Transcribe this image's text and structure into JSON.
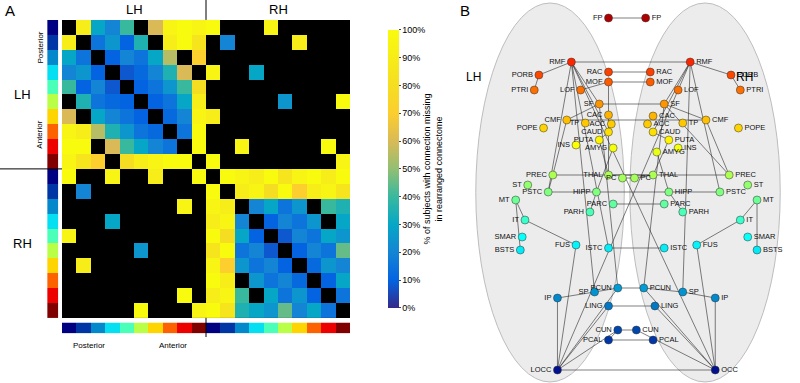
{
  "chart_data": [
    {
      "type": "heatmap",
      "panel_label": "A",
      "column_groups": [
        "LH",
        "RH"
      ],
      "row_groups": [
        "LH",
        "RH"
      ],
      "order_labels": [
        "Posterior",
        "Anterior"
      ],
      "tick_labels": false,
      "cells": [
        [
          null,
          90,
          30,
          20,
          40,
          null,
          60,
          95,
          100,
          95,
          100,
          null,
          null,
          null,
          95,
          null,
          null,
          null,
          null,
          null
        ],
        [
          90,
          null,
          15,
          25,
          10,
          35,
          null,
          90,
          100,
          85,
          null,
          20,
          null,
          null,
          null,
          null,
          90,
          null,
          null,
          null
        ],
        [
          30,
          15,
          null,
          10,
          20,
          15,
          30,
          55,
          null,
          70,
          null,
          null,
          null,
          null,
          null,
          null,
          null,
          null,
          null,
          null
        ],
        [
          20,
          25,
          10,
          null,
          8,
          12,
          20,
          35,
          60,
          null,
          95,
          null,
          null,
          30,
          null,
          null,
          null,
          null,
          null,
          null
        ],
        [
          40,
          10,
          20,
          8,
          null,
          10,
          15,
          25,
          40,
          80,
          null,
          null,
          null,
          null,
          null,
          null,
          null,
          null,
          null,
          null
        ],
        [
          null,
          35,
          15,
          12,
          10,
          null,
          10,
          15,
          30,
          90,
          null,
          null,
          null,
          null,
          null,
          25,
          null,
          null,
          null,
          100
        ],
        [
          60,
          null,
          30,
          20,
          15,
          10,
          null,
          12,
          20,
          95,
          90,
          null,
          null,
          null,
          null,
          null,
          null,
          null,
          null,
          null
        ],
        [
          95,
          90,
          55,
          35,
          25,
          15,
          12,
          null,
          15,
          100,
          null,
          null,
          null,
          null,
          null,
          null,
          null,
          null,
          null,
          null
        ],
        [
          100,
          100,
          null,
          60,
          40,
          30,
          20,
          15,
          null,
          100,
          null,
          null,
          95,
          null,
          null,
          null,
          null,
          null,
          100,
          null
        ],
        [
          95,
          85,
          70,
          null,
          80,
          90,
          95,
          100,
          100,
          null,
          100,
          null,
          null,
          null,
          null,
          null,
          null,
          null,
          null,
          95
        ],
        [
          100,
          null,
          null,
          95,
          null,
          null,
          90,
          null,
          null,
          100,
          null,
          100,
          95,
          90,
          100,
          85,
          95,
          100,
          90,
          100
        ],
        [
          null,
          20,
          null,
          null,
          null,
          null,
          null,
          null,
          null,
          null,
          100,
          null,
          90,
          95,
          80,
          100,
          70,
          90,
          95,
          85
        ],
        [
          null,
          null,
          null,
          null,
          null,
          null,
          null,
          null,
          95,
          null,
          95,
          90,
          null,
          20,
          30,
          15,
          25,
          null,
          40,
          35
        ],
        [
          null,
          null,
          null,
          30,
          null,
          null,
          null,
          null,
          null,
          null,
          90,
          95,
          20,
          null,
          10,
          20,
          15,
          25,
          null,
          30
        ],
        [
          95,
          null,
          null,
          null,
          null,
          null,
          null,
          null,
          null,
          null,
          100,
          80,
          30,
          10,
          null,
          8,
          20,
          15,
          30,
          25
        ],
        [
          null,
          null,
          null,
          null,
          null,
          25,
          null,
          null,
          null,
          null,
          85,
          100,
          15,
          20,
          8,
          null,
          10,
          20,
          15,
          45
        ],
        [
          null,
          90,
          null,
          null,
          null,
          null,
          null,
          null,
          null,
          null,
          95,
          70,
          25,
          15,
          20,
          10,
          null,
          12,
          25,
          20
        ],
        [
          null,
          null,
          null,
          null,
          null,
          null,
          null,
          null,
          null,
          null,
          100,
          90,
          null,
          25,
          15,
          20,
          12,
          null,
          10,
          30
        ],
        [
          null,
          null,
          null,
          null,
          null,
          null,
          null,
          null,
          100,
          null,
          90,
          95,
          40,
          null,
          30,
          15,
          25,
          10,
          null,
          15
        ],
        [
          null,
          null,
          null,
          null,
          null,
          100,
          null,
          null,
          null,
          95,
          100,
          85,
          35,
          30,
          25,
          45,
          20,
          30,
          15,
          null
        ]
      ],
      "colorbar": {
        "title": [
          "% of subjects with connection missing",
          "in rearranged connectome"
        ],
        "range": [
          0,
          100
        ],
        "ticks": [
          {
            "value": 0,
            "label": "0%"
          },
          {
            "value": 10,
            "label": "10%"
          },
          {
            "value": 20,
            "label": "20%"
          },
          {
            "value": 30,
            "label": "30%"
          },
          {
            "value": 40,
            "label": "40%"
          },
          {
            "value": 50,
            "label": "50%"
          },
          {
            "value": 60,
            "label": "60%"
          },
          {
            "value": 70,
            "label": "70%"
          },
          {
            "value": 80,
            "label": "80%"
          },
          {
            "value": 90,
            "label": "90%"
          },
          {
            "value": 100,
            "label": "100%"
          }
        ]
      }
    },
    {
      "type": "network",
      "panel_label": "B",
      "hemisphere_labels": [
        "LH",
        "RH"
      ],
      "tick_labels": false,
      "xlim": [
        -180,
        182
      ],
      "ylim": [
        -183,
        200
      ],
      "nodes": [
        {
          "label": "FP",
          "x": -20,
          "y": 182
        },
        {
          "label": "RMF",
          "x": -60,
          "y": 138
        },
        {
          "label": "RAC",
          "x": -20,
          "y": 128
        },
        {
          "label": "MOF",
          "x": -20,
          "y": 118
        },
        {
          "label": "PORB",
          "x": -95,
          "y": 125
        },
        {
          "label": "PTRI",
          "x": -100,
          "y": 110
        },
        {
          "label": "LOF",
          "x": -50,
          "y": 110
        },
        {
          "label": "SF",
          "x": -30,
          "y": 96
        },
        {
          "label": "CAC",
          "x": -20,
          "y": 85
        },
        {
          "label": "POPE",
          "x": -90,
          "y": 72
        },
        {
          "label": "CMF",
          "x": -65,
          "y": 80
        },
        {
          "label": "TP",
          "x": -45,
          "y": 77
        },
        {
          "label": "ACC",
          "x": -17,
          "y": 76
        },
        {
          "label": "CAUD",
          "x": -20,
          "y": 68
        },
        {
          "label": "PUTA",
          "x": -30,
          "y": 60
        },
        {
          "label": "INS",
          "x": -55,
          "y": 55
        },
        {
          "label": "AMYG",
          "x": -15,
          "y": 52
        },
        {
          "label": "PREC",
          "x": -80,
          "y": 25
        },
        {
          "label": "ST",
          "x": -107,
          "y": 15
        },
        {
          "label": "THAL",
          "x": -20,
          "y": 25
        },
        {
          "label": "PC",
          "x": -5,
          "y": 22
        },
        {
          "label": "PSTC",
          "x": -85,
          "y": 8
        },
        {
          "label": "MT",
          "x": -120,
          "y": 0
        },
        {
          "label": "HIPP",
          "x": -33,
          "y": 8
        },
        {
          "label": "PARC",
          "x": -15,
          "y": -4
        },
        {
          "label": "PARH",
          "x": -40,
          "y": -12
        },
        {
          "label": "IT",
          "x": -110,
          "y": -20
        },
        {
          "label": "SMAR",
          "x": -113,
          "y": -37
        },
        {
          "label": "BSTS",
          "x": -115,
          "y": -50
        },
        {
          "label": "FUS",
          "x": -55,
          "y": -45
        },
        {
          "label": "ISTC",
          "x": -20,
          "y": -48
        },
        {
          "label": "IP",
          "x": -75,
          "y": -98
        },
        {
          "label": "SP",
          "x": -35,
          "y": -92
        },
        {
          "label": "PCUN",
          "x": -10,
          "y": -88
        },
        {
          "label": "LING",
          "x": -20,
          "y": -106
        },
        {
          "label": "CUN",
          "x": -10,
          "y": -130
        },
        {
          "label": "PCAL",
          "x": -20,
          "y": -140
        },
        {
          "label": "LOCC",
          "x": -75,
          "y": -170
        },
        {
          "label": "FP",
          "x": 20,
          "y": 182
        },
        {
          "label": "RMF",
          "x": 68,
          "y": 138
        },
        {
          "label": "RAC",
          "x": 25,
          "y": 128
        },
        {
          "label": "MOF",
          "x": 25,
          "y": 118
        },
        {
          "label": "PORB",
          "x": 112,
          "y": 125
        },
        {
          "label": "PTRI",
          "x": 122,
          "y": 110
        },
        {
          "label": "LOF",
          "x": 55,
          "y": 110
        },
        {
          "label": "SF",
          "x": 40,
          "y": 96
        },
        {
          "label": "CAC",
          "x": 28,
          "y": 84
        },
        {
          "label": "POPE",
          "x": 120,
          "y": 72
        },
        {
          "label": "CMF",
          "x": 85,
          "y": 80
        },
        {
          "label": "TP",
          "x": 60,
          "y": 77
        },
        {
          "label": "ACC",
          "x": 22,
          "y": 76
        },
        {
          "label": "CAUD",
          "x": 28,
          "y": 68
        },
        {
          "label": "PUTA",
          "x": 45,
          "y": 60
        },
        {
          "label": "INS",
          "x": 55,
          "y": 52
        },
        {
          "label": "AMYG",
          "x": 32,
          "y": 48
        },
        {
          "label": "PREC",
          "x": 110,
          "y": 25
        },
        {
          "label": "ST",
          "x": 130,
          "y": 15
        },
        {
          "label": "THAL",
          "x": 28,
          "y": 25
        },
        {
          "label": "PC",
          "x": 8,
          "y": 22
        },
        {
          "label": "PSTC",
          "x": 100,
          "y": 8
        },
        {
          "label": "MT",
          "x": 140,
          "y": 0
        },
        {
          "label": "HIPP",
          "x": 45,
          "y": 8
        },
        {
          "label": "PARC",
          "x": 40,
          "y": -4
        },
        {
          "label": "PARH",
          "x": 60,
          "y": -12
        },
        {
          "label": "IT",
          "x": 122,
          "y": -20
        },
        {
          "label": "SMAR",
          "x": 130,
          "y": -37
        },
        {
          "label": "BSTS",
          "x": 140,
          "y": -50
        },
        {
          "label": "FUS",
          "x": 75,
          "y": -45
        },
        {
          "label": "ISTC",
          "x": 40,
          "y": -48
        },
        {
          "label": "IP",
          "x": 95,
          "y": -98
        },
        {
          "label": "SP",
          "x": 60,
          "y": -92
        },
        {
          "label": "PCUN",
          "x": 18,
          "y": -88
        },
        {
          "label": "LING",
          "x": 30,
          "y": -106
        },
        {
          "label": "CUN",
          "x": 10,
          "y": -130
        },
        {
          "label": "PCAL",
          "x": 28,
          "y": -140
        },
        {
          "label": "OCC",
          "x": 95,
          "y": -170
        }
      ],
      "edges": [
        [
          1,
          4
        ],
        [
          1,
          7
        ],
        [
          1,
          39
        ],
        [
          0,
          38
        ],
        [
          1,
          13
        ],
        [
          1,
          21
        ],
        [
          1,
          30
        ],
        [
          1,
          32
        ],
        [
          7,
          45
        ],
        [
          7,
          10
        ],
        [
          10,
          17
        ],
        [
          17,
          21
        ],
        [
          4,
          5
        ],
        [
          6,
          3
        ],
        [
          2,
          40
        ],
        [
          3,
          41
        ],
        [
          3,
          19
        ],
        [
          13,
          14
        ],
        [
          14,
          19
        ],
        [
          19,
          57
        ],
        [
          20,
          58
        ],
        [
          24,
          62
        ],
        [
          30,
          68
        ],
        [
          33,
          71
        ],
        [
          33,
          32
        ],
        [
          32,
          31
        ],
        [
          31,
          37
        ],
        [
          37,
          34
        ],
        [
          37,
          35
        ],
        [
          37,
          75
        ],
        [
          37,
          29
        ],
        [
          37,
          33
        ],
        [
          34,
          72
        ],
        [
          35,
          73
        ],
        [
          36,
          74
        ],
        [
          36,
          35
        ],
        [
          29,
          26
        ],
        [
          26,
          22
        ],
        [
          22,
          28
        ],
        [
          23,
          25
        ],
        [
          16,
          23
        ],
        [
          39,
          42
        ],
        [
          39,
          45
        ],
        [
          39,
          59
        ],
        [
          39,
          70
        ],
        [
          39,
          51
        ],
        [
          45,
          48
        ],
        [
          45,
          55
        ],
        [
          48,
          55
        ],
        [
          42,
          43
        ],
        [
          51,
          52
        ],
        [
          52,
          57
        ],
        [
          57,
          58
        ],
        [
          71,
          70
        ],
        [
          70,
          69
        ],
        [
          69,
          75
        ],
        [
          75,
          72
        ],
        [
          75,
          73
        ],
        [
          75,
          67
        ],
        [
          75,
          71
        ],
        [
          67,
          64
        ],
        [
          64,
          60
        ],
        [
          60,
          66
        ],
        [
          61,
          63
        ],
        [
          54,
          61
        ],
        [
          1,
          75
        ],
        [
          39,
          37
        ],
        [
          7,
          33
        ],
        [
          45,
          71
        ],
        [
          17,
          55
        ],
        [
          21,
          59
        ],
        [
          10,
          48
        ]
      ]
    }
  ]
}
